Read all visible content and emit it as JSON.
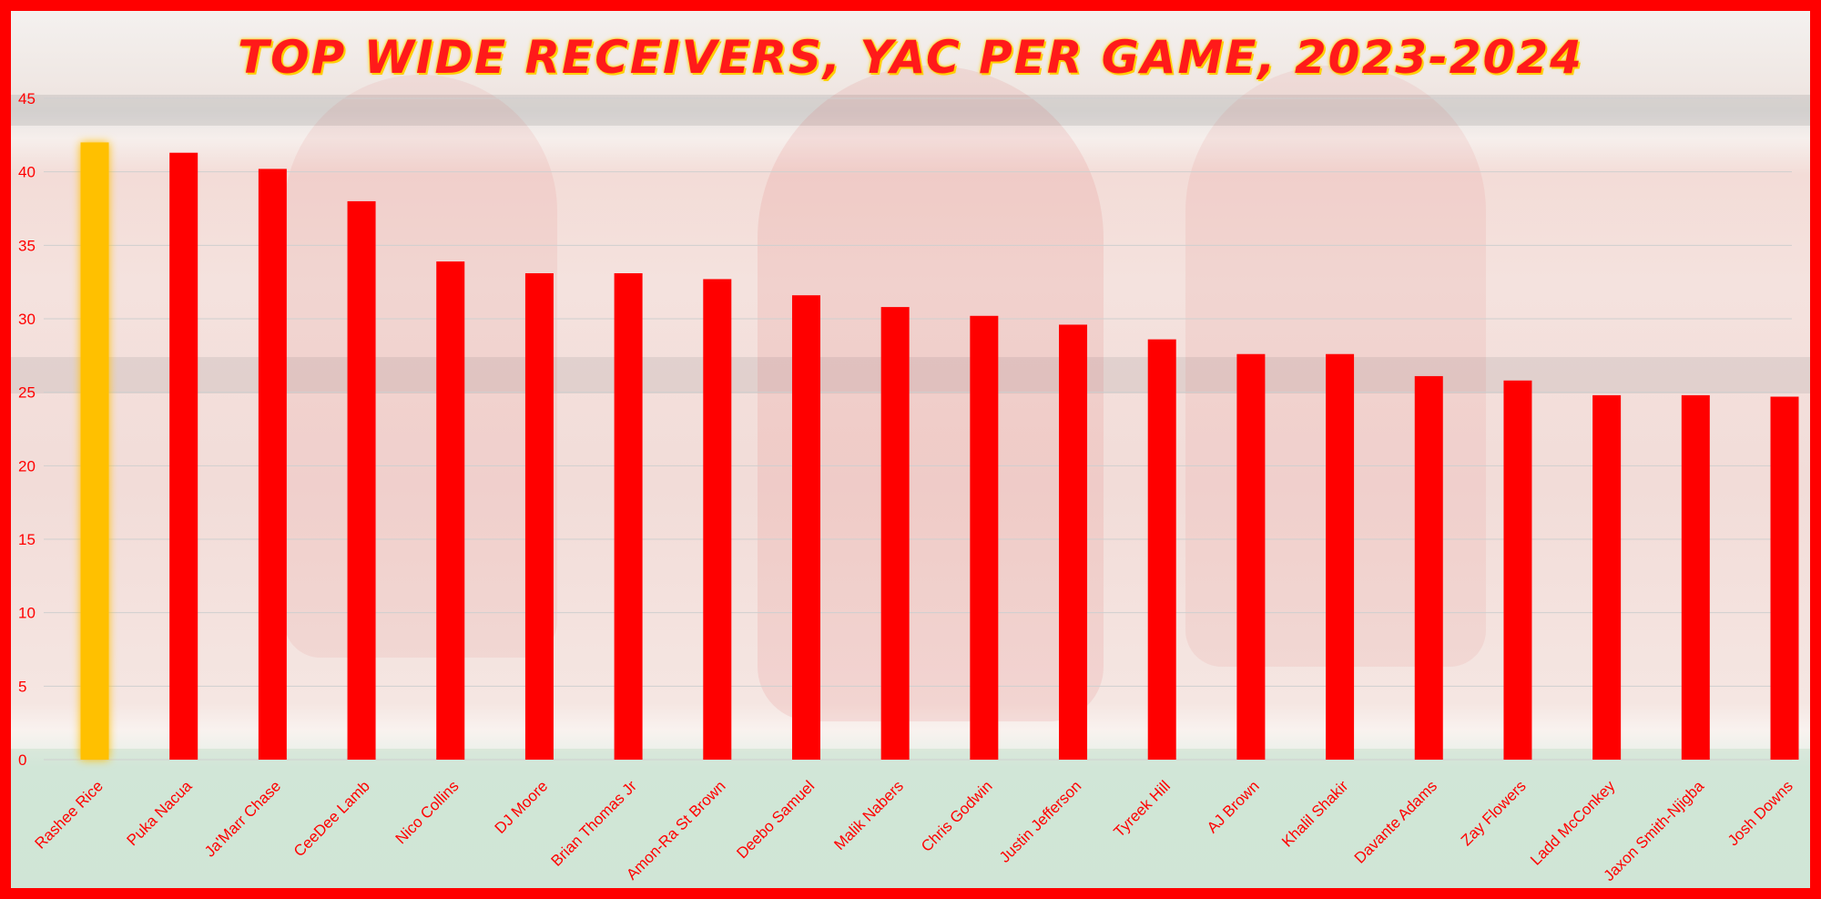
{
  "chart_data": {
    "type": "bar",
    "title": "TOP WIDE RECEIVERS, YAC PER GAME, 2023-2024",
    "xlabel": "",
    "ylabel": "",
    "ylim": [
      0,
      45
    ],
    "yticks": [
      "0",
      "5",
      "10",
      "15",
      "20",
      "25",
      "30",
      "35",
      "40",
      "45"
    ],
    "grid": true,
    "categories": [
      "Rashee Rice",
      "Puka Nacua",
      "Ja'Marr Chase",
      "CeeDee Lamb",
      "Nico Collins",
      "DJ Moore",
      "Brian Thomas Jr",
      "Amon-Ra St Brown",
      "Deebo Samuel",
      "Malik Nabers",
      "Chris Godwin",
      "Justin Jefferson",
      "Tyreek Hill",
      "AJ Brown",
      "Khalil Shakir",
      "Davante Adams",
      "Zay Flowers",
      "Ladd McConkey",
      "Jaxon Smith-Njigba",
      "Josh Downs"
    ],
    "values": [
      42.0,
      41.3,
      40.2,
      38.0,
      33.9,
      33.1,
      33.1,
      32.7,
      31.6,
      30.8,
      30.2,
      29.6,
      28.6,
      27.6,
      27.6,
      26.1,
      25.8,
      24.8,
      24.8,
      24.7
    ],
    "colors": {
      "bar": "#ff0000",
      "highlight": "#ffc000",
      "text": "#ff0000",
      "grid": "#cfcfcf",
      "frame": "#ff0000"
    },
    "highlight_index": 0
  }
}
